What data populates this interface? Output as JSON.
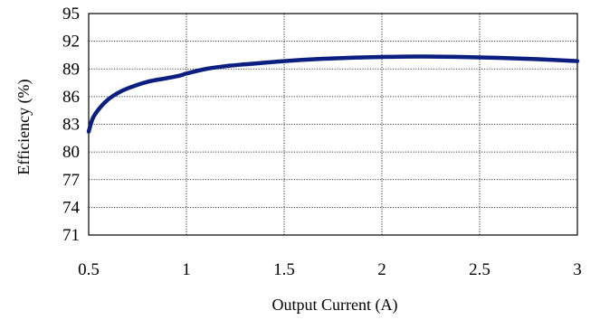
{
  "chart_data": {
    "type": "line",
    "title": "",
    "xlabel": "Output  Current (A)",
    "ylabel": "Efficiency (%)",
    "xlim": [
      0.5,
      3
    ],
    "ylim": [
      71,
      95
    ],
    "x_ticks": [
      {
        "value": 0.5,
        "label": "0.5"
      },
      {
        "value": 1,
        "label": "1"
      },
      {
        "value": 1.5,
        "label": "1.5"
      },
      {
        "value": 2,
        "label": "2"
      },
      {
        "value": 2.5,
        "label": "2.5"
      },
      {
        "value": 3,
        "label": "3"
      }
    ],
    "y_ticks": [
      {
        "value": 71,
        "label": "71"
      },
      {
        "value": 74,
        "label": "74"
      },
      {
        "value": 77,
        "label": "77"
      },
      {
        "value": 80,
        "label": "80"
      },
      {
        "value": 83,
        "label": "83"
      },
      {
        "value": 86,
        "label": "86"
      },
      {
        "value": 89,
        "label": "89"
      },
      {
        "value": 92,
        "label": "92"
      },
      {
        "value": 95,
        "label": "95"
      }
    ],
    "grid": true,
    "series": [
      {
        "color": "#0b1f80",
        "x": [
          0.5,
          0.52,
          0.55,
          0.6,
          0.65,
          0.7,
          0.8,
          0.9,
          0.97,
          1.0,
          1.1,
          1.2,
          1.3,
          1.5,
          1.7,
          1.9,
          2.0,
          2.2,
          2.4,
          2.6,
          2.8,
          3.0
        ],
        "y": [
          82.2,
          83.6,
          84.6,
          85.7,
          86.4,
          86.9,
          87.6,
          88.0,
          88.3,
          88.5,
          89.0,
          89.3,
          89.5,
          89.85,
          90.1,
          90.25,
          90.3,
          90.35,
          90.3,
          90.2,
          90.05,
          89.85
        ]
      }
    ]
  }
}
